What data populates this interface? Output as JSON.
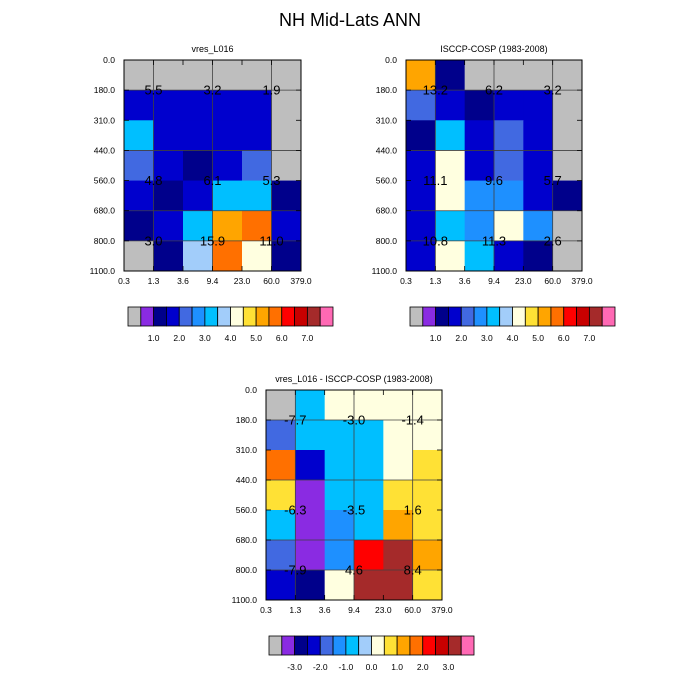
{
  "title": "NH Mid-Lats ANN",
  "chart_data": [
    {
      "type": "heatmap",
      "title": "vres_L016",
      "x_ticks": [
        "0.3",
        "1.3",
        "3.6",
        "9.4",
        "23.0",
        "60.0",
        "379.0"
      ],
      "y_ticks": [
        "0.0",
        "180.0",
        "310.0",
        "440.0",
        "560.0",
        "680.0",
        "800.0",
        "1100.0"
      ],
      "cells": [
        [
          0.0,
          0.0,
          0.0,
          0.0,
          0.0,
          0.0
        ],
        [
          1.9,
          1.9,
          1.9,
          1.9,
          1.9,
          0.0
        ],
        [
          3.2,
          1.9,
          1.9,
          1.9,
          1.9,
          0.0
        ],
        [
          2.2,
          1.9,
          1.2,
          1.9,
          2.2,
          0.0
        ],
        [
          1.9,
          1.2,
          1.9,
          3.0,
          3.0,
          1.2
        ],
        [
          1.2,
          1.9,
          3.0,
          5.0,
          5.5,
          1.9
        ],
        [
          0.0,
          1.2,
          3.5,
          5.5,
          4.3,
          1.2
        ]
      ],
      "annotations": [
        {
          "x": 1.3,
          "y": 180.0,
          "label": "5.5"
        },
        {
          "x": 9.4,
          "y": 180.0,
          "label": "3.2"
        },
        {
          "x": 60.0,
          "y": 180.0,
          "label": "1.9"
        },
        {
          "x": 1.3,
          "y": 560.0,
          "label": "4.8"
        },
        {
          "x": 9.4,
          "y": 560.0,
          "label": "6.1"
        },
        {
          "x": 60.0,
          "y": 560.0,
          "label": "5.3"
        },
        {
          "x": 1.3,
          "y": 800.0,
          "label": "3.0"
        },
        {
          "x": 9.4,
          "y": 800.0,
          "label": "15.9"
        },
        {
          "x": 60.0,
          "y": 800.0,
          "label": "11.0"
        }
      ],
      "colorbar": {
        "labels": [
          "1.0",
          "2.0",
          "3.0",
          "4.0",
          "5.0",
          "6.0",
          "7.0"
        ],
        "colors": [
          "#bebebe",
          "#8a2be2",
          "#00008b",
          "#0000cd",
          "#4169e1",
          "#1e90ff",
          "#00bfff",
          "#a2cdfa",
          "#ffffe0",
          "#ffe135",
          "#ffa500",
          "#ff7000",
          "#ff0000",
          "#c80000",
          "#a52a2a",
          "#ff69b4"
        ],
        "bounds": [
          0.5,
          1.0,
          1.5,
          2.0,
          2.5,
          3.0,
          3.5,
          4.0,
          4.5,
          5.0,
          5.5,
          6.0,
          6.5,
          7.0,
          7.5
        ]
      }
    },
    {
      "type": "heatmap",
      "title": "ISCCP-COSP (1983-2008)",
      "x_ticks": [
        "0.3",
        "1.3",
        "3.6",
        "9.4",
        "23.0",
        "60.0",
        "379.0"
      ],
      "y_ticks": [
        "0.0",
        "180.0",
        "310.0",
        "440.0",
        "560.0",
        "680.0",
        "800.0",
        "1100.0"
      ],
      "cells": [
        [
          5.0,
          1.2,
          0.0,
          0.0,
          0.0,
          0.0
        ],
        [
          2.2,
          1.9,
          1.2,
          1.9,
          1.9,
          0.0
        ],
        [
          1.2,
          3.0,
          1.9,
          2.2,
          1.9,
          0.0
        ],
        [
          1.9,
          4.0,
          1.9,
          2.2,
          1.9,
          0.0
        ],
        [
          1.9,
          4.0,
          2.7,
          2.7,
          1.9,
          1.2
        ],
        [
          1.9,
          3.0,
          2.7,
          4.0,
          2.7,
          0.0
        ],
        [
          1.9,
          4.3,
          3.0,
          1.9,
          1.2,
          0.0
        ]
      ],
      "annotations": [
        {
          "x": 1.3,
          "y": 180.0,
          "label": "13.2"
        },
        {
          "x": 9.4,
          "y": 180.0,
          "label": "6.2"
        },
        {
          "x": 60.0,
          "y": 180.0,
          "label": "3.2"
        },
        {
          "x": 1.3,
          "y": 560.0,
          "label": "11.1"
        },
        {
          "x": 9.4,
          "y": 560.0,
          "label": "9.6"
        },
        {
          "x": 60.0,
          "y": 560.0,
          "label": "5.7"
        },
        {
          "x": 1.3,
          "y": 800.0,
          "label": "10.8"
        },
        {
          "x": 9.4,
          "y": 800.0,
          "label": "11.3"
        },
        {
          "x": 60.0,
          "y": 800.0,
          "label": "2.6"
        }
      ],
      "colorbar": {
        "labels": [
          "1.0",
          "2.0",
          "3.0",
          "4.0",
          "5.0",
          "6.0",
          "7.0"
        ],
        "colors": [
          "#bebebe",
          "#8a2be2",
          "#00008b",
          "#0000cd",
          "#4169e1",
          "#1e90ff",
          "#00bfff",
          "#a2cdfa",
          "#ffffe0",
          "#ffe135",
          "#ffa500",
          "#ff7000",
          "#ff0000",
          "#c80000",
          "#a52a2a",
          "#ff69b4"
        ],
        "bounds": [
          0.5,
          1.0,
          1.5,
          2.0,
          2.5,
          3.0,
          3.5,
          4.0,
          4.5,
          5.0,
          5.5,
          6.0,
          6.5,
          7.0,
          7.5
        ]
      }
    },
    {
      "type": "heatmap",
      "title": "vres_L016 - ISCCP-COSP (1983-2008)",
      "x_ticks": [
        "0.3",
        "1.3",
        "3.6",
        "9.4",
        "23.0",
        "60.0",
        "379.0"
      ],
      "y_ticks": [
        "0.0",
        "180.0",
        "310.0",
        "440.0",
        "560.0",
        "680.0",
        "800.0",
        "1100.0"
      ],
      "cells": [
        [
          -5.0,
          -0.7,
          0.0,
          0.0,
          0.0,
          0.0
        ],
        [
          -1.7,
          -0.7,
          -0.7,
          -0.7,
          0.0,
          0.0
        ],
        [
          1.7,
          -2.2,
          -0.7,
          -0.7,
          0.0,
          0.5
        ],
        [
          0.5,
          -3.3,
          -0.7,
          -0.7,
          0.5,
          0.5
        ],
        [
          -0.7,
          -3.3,
          -1.3,
          -0.7,
          1.3,
          0.5
        ],
        [
          -1.7,
          -3.3,
          -1.3,
          2.3,
          3.3,
          1.3
        ],
        [
          -2.2,
          -2.7,
          0.0,
          3.3,
          3.3,
          0.5
        ]
      ],
      "annotations": [
        {
          "x": 1.3,
          "y": 180.0,
          "label": "-7.7"
        },
        {
          "x": 9.4,
          "y": 180.0,
          "label": "-3.0"
        },
        {
          "x": 60.0,
          "y": 180.0,
          "label": "-1.4"
        },
        {
          "x": 1.3,
          "y": 560.0,
          "label": "-6.3"
        },
        {
          "x": 9.4,
          "y": 560.0,
          "label": "-3.5"
        },
        {
          "x": 60.0,
          "y": 560.0,
          "label": "1.6"
        },
        {
          "x": 1.3,
          "y": 800.0,
          "label": "-7.9"
        },
        {
          "x": 9.4,
          "y": 800.0,
          "label": "4.6"
        },
        {
          "x": 60.0,
          "y": 800.0,
          "label": "8.4"
        }
      ],
      "colorbar": {
        "labels": [
          "-3.0",
          "-2.0",
          "-1.0",
          "0.0",
          "1.0",
          "2.0",
          "3.0"
        ],
        "colors": [
          "#bebebe",
          "#8a2be2",
          "#00008b",
          "#0000cd",
          "#4169e1",
          "#1e90ff",
          "#00bfff",
          "#a2cdfa",
          "#ffffe0",
          "#ffe135",
          "#ffa500",
          "#ff7000",
          "#ff0000",
          "#c80000",
          "#a52a2a",
          "#ff69b4"
        ],
        "bounds": [
          -3.5,
          -3.0,
          -2.5,
          -2.0,
          -1.5,
          -1.0,
          -0.5,
          0.0,
          0.5,
          1.0,
          1.5,
          2.0,
          2.5,
          3.0,
          3.5
        ]
      }
    }
  ]
}
